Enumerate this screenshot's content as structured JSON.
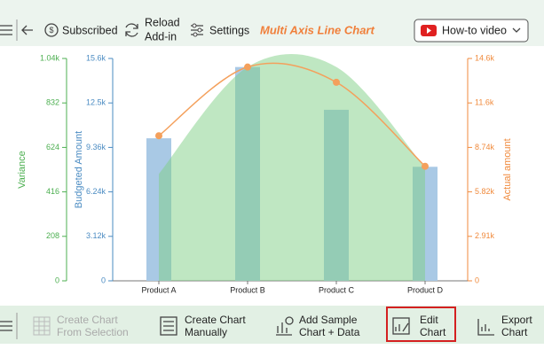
{
  "toolbar": {
    "subscribed": "Subscribed",
    "reload": [
      "Reload",
      "Add-in"
    ],
    "settings": "Settings",
    "title": "Multi Axis Line Chart",
    "video": "How-to video"
  },
  "chart_data": {
    "type": "combo",
    "categories": [
      "Product A",
      "Product B",
      "Product C",
      "Product D"
    ],
    "series": [
      {
        "name": "Budgeted Amount",
        "type": "bar",
        "axis": "y3",
        "color": "#a9c9e5",
        "values": [
          10000,
          15000,
          12000,
          8000
        ]
      },
      {
        "name": "Variance",
        "type": "area",
        "axis": "y",
        "color": "#7fcf85",
        "values": [
          500,
          1000,
          1000,
          530
        ]
      },
      {
        "name": "Actual amount",
        "type": "line",
        "axis": "y2",
        "color": "#f4a05c",
        "values": [
          9500,
          14000,
          13000,
          7500
        ]
      }
    ],
    "ylim": [
      0,
      1040
    ],
    "yticks": [
      0,
      208,
      416,
      624,
      832,
      {
        "value": 1040,
        "label": "1.04k"
      }
    ],
    "y3lim": [
      0,
      15600
    ],
    "y3ticks": [
      0,
      {
        "value": 3120,
        "label": "3.12k"
      },
      {
        "value": 6240,
        "label": "6.24k"
      },
      {
        "value": 9360,
        "label": "9.36k"
      },
      {
        "value": 12480,
        "label": "12.5k"
      },
      {
        "value": 15600,
        "label": "15.6k"
      }
    ],
    "y2lim": [
      0,
      14560
    ],
    "y2ticks": [
      0,
      {
        "value": 2912,
        "label": "2.91k"
      },
      {
        "value": 5824,
        "label": "5.82k"
      },
      {
        "value": 8736,
        "label": "8.74k"
      },
      {
        "value": 11648,
        "label": "11.6k"
      },
      {
        "value": 14560,
        "label": "14.6k"
      }
    ],
    "grid": false
  },
  "bottom_toolbar": {
    "buttons": [
      {
        "lines": [
          "Create Chart",
          "From Selection"
        ],
        "enabled": false
      },
      {
        "lines": [
          "Create Chart",
          "Manually"
        ],
        "enabled": true
      },
      {
        "lines": [
          "Add Sample",
          "Chart + Data"
        ],
        "enabled": true
      },
      {
        "lines": [
          "Edit",
          "Chart"
        ],
        "enabled": true
      },
      {
        "lines": [
          "Export",
          "Chart"
        ],
        "enabled": true
      }
    ]
  }
}
